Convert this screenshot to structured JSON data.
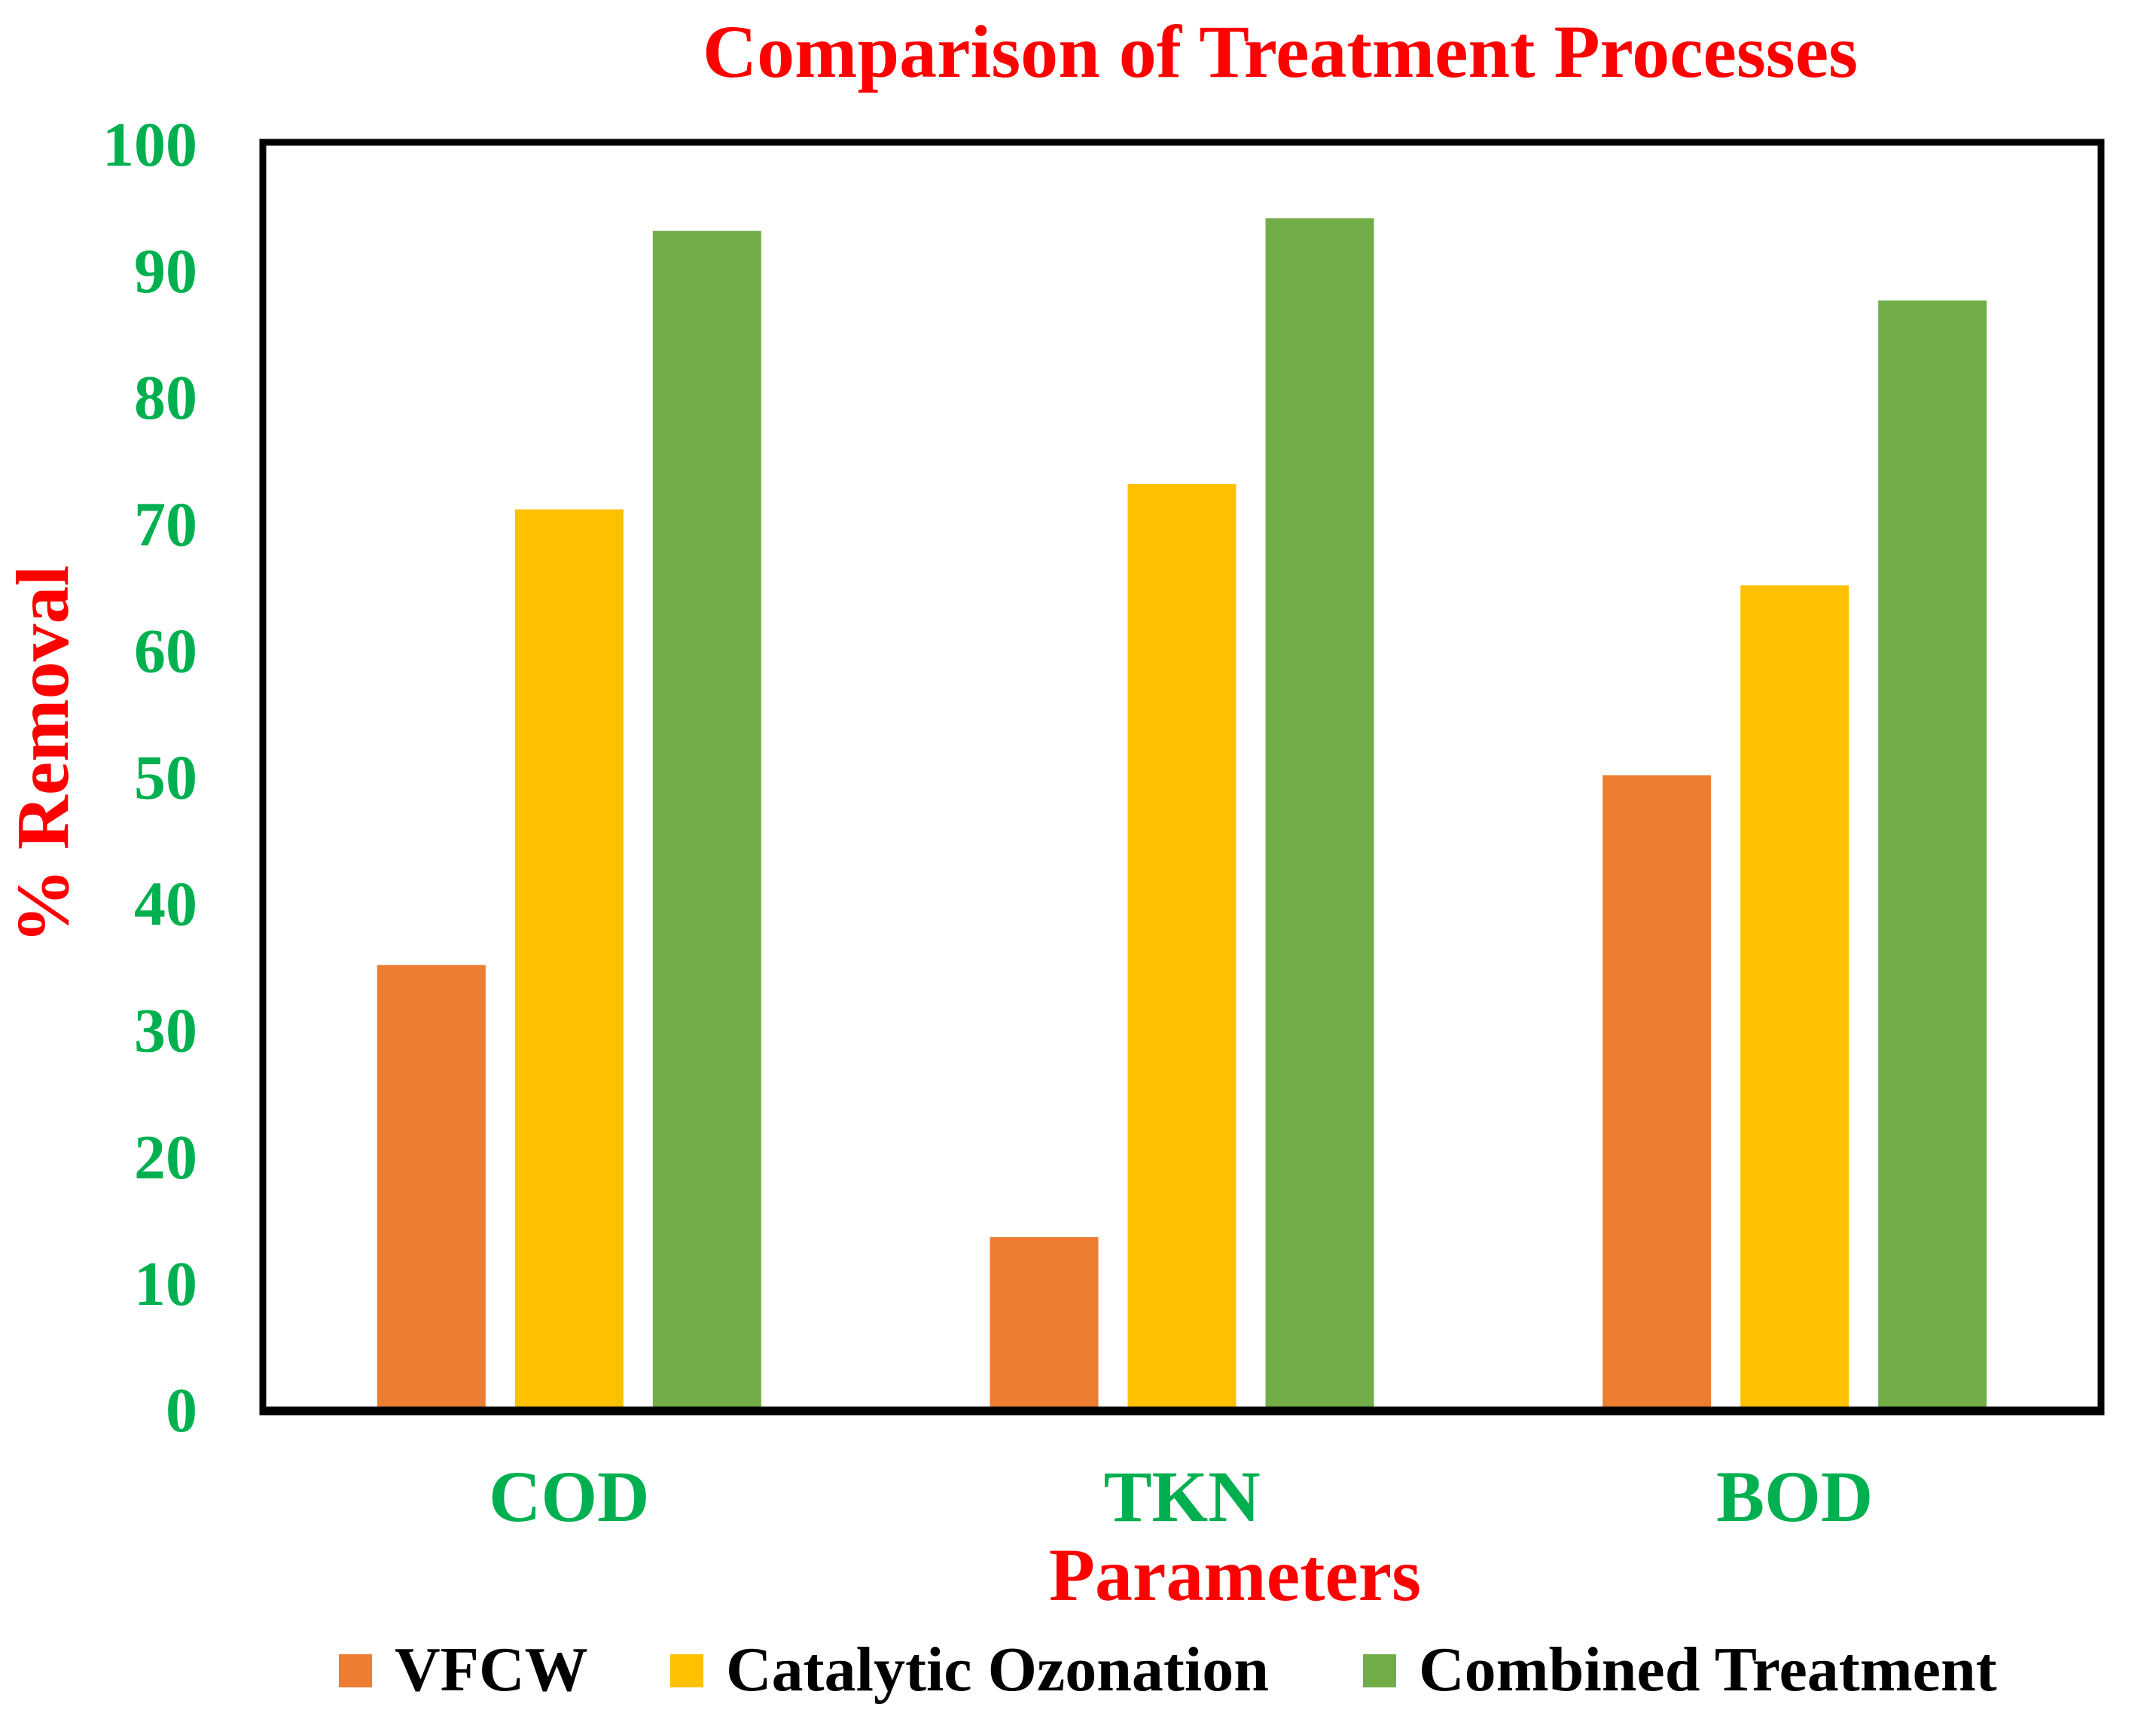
{
  "chart_data": {
    "type": "bar",
    "title": "Comparison of Treatment Processes",
    "xlabel": "Parameters",
    "ylabel": "% Removal",
    "categories": [
      "COD",
      "TKN",
      "BOD"
    ],
    "ylim": [
      0,
      100
    ],
    "yticks": [
      0,
      10,
      20,
      30,
      40,
      50,
      60,
      70,
      80,
      90,
      100
    ],
    "grid": false,
    "legend_position": "bottom",
    "series": [
      {
        "name": "VFCW",
        "color": "#ED7D31",
        "values": [
          35,
          13.5,
          50
        ]
      },
      {
        "name": "Catalytic Ozonation",
        "color": "#FFC000",
        "values": [
          71,
          73,
          65
        ]
      },
      {
        "name": "Combined Treatment",
        "color": "#70AD47",
        "values": [
          93,
          94,
          87.5
        ]
      }
    ],
    "colors": {
      "title": "#FF0000",
      "axis_label": "#FF0000",
      "tick_label": "#00B050",
      "legend_text": "#000000",
      "frame": "#000000"
    }
  }
}
